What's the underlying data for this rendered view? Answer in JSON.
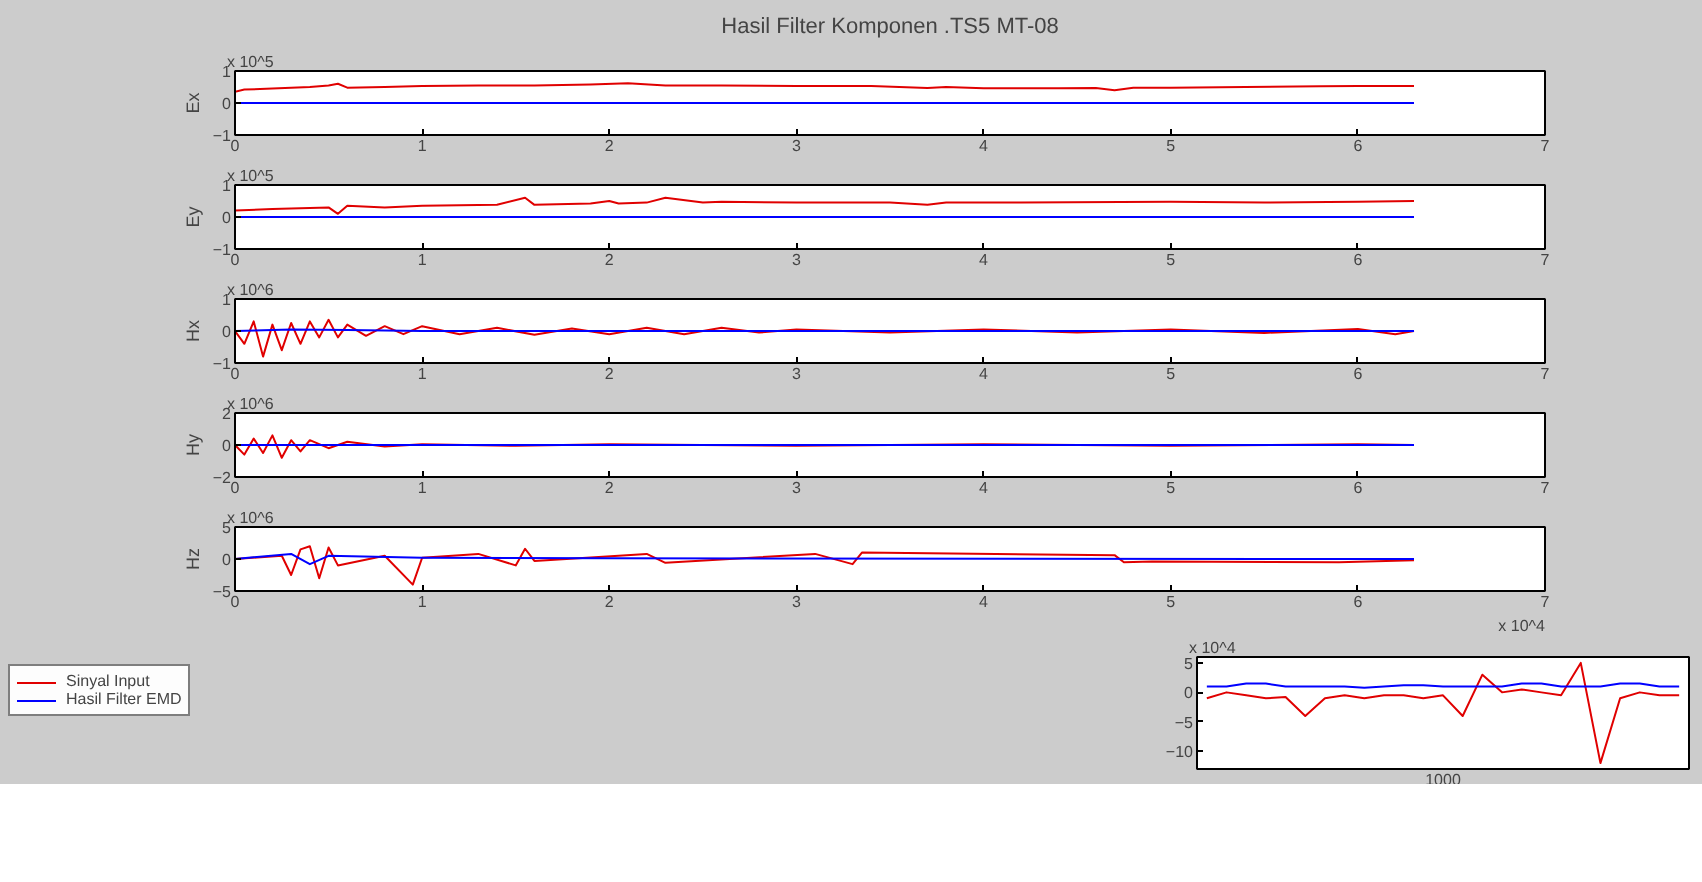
{
  "chart_data": [
    {
      "type": "line",
      "title": "Hasil Filter Komponen .TS5 MT-08",
      "ylabel": "Ex",
      "annotations": [
        "x 10^5"
      ],
      "xlim": [
        0,
        7
      ],
      "xticks": [
        0,
        1,
        2,
        3,
        4,
        5,
        6,
        7
      ],
      "ylim": [
        -1,
        1
      ],
      "yticks": [
        -1,
        0,
        1
      ],
      "grid": false,
      "legend": false,
      "series": [
        {
          "color": "#e00000",
          "x": [
            0,
            0.05,
            0.2,
            0.4,
            0.5,
            0.55,
            0.6,
            0.8,
            1.0,
            1.3,
            1.6,
            1.9,
            2.1,
            2.3,
            2.6,
            3.0,
            3.4,
            3.7,
            3.8,
            4.0,
            4.4,
            4.6,
            4.7,
            4.8,
            5.0,
            5.4,
            5.8,
            6.0,
            6.3
          ],
          "values": [
            0.35,
            0.42,
            0.45,
            0.5,
            0.55,
            0.6,
            0.48,
            0.5,
            0.53,
            0.55,
            0.55,
            0.58,
            0.62,
            0.55,
            0.55,
            0.53,
            0.53,
            0.47,
            0.5,
            0.46,
            0.46,
            0.47,
            0.4,
            0.48,
            0.48,
            0.5,
            0.52,
            0.53,
            0.53
          ]
        },
        {
          "color": "#0000ff",
          "x": [
            0,
            6.3
          ],
          "values": [
            0,
            0
          ]
        }
      ]
    },
    {
      "type": "line",
      "ylabel": "Ey",
      "annotations": [
        "x 10^5"
      ],
      "xlim": [
        0,
        7
      ],
      "xticks": [
        0,
        1,
        2,
        3,
        4,
        5,
        6,
        7
      ],
      "ylim": [
        -1,
        1
      ],
      "yticks": [
        -1,
        0,
        1
      ],
      "grid": false,
      "legend": false,
      "series": [
        {
          "color": "#e00000",
          "x": [
            0,
            0.2,
            0.4,
            0.5,
            0.55,
            0.6,
            0.8,
            1.0,
            1.4,
            1.55,
            1.6,
            1.9,
            2.0,
            2.05,
            2.2,
            2.3,
            2.5,
            2.6,
            3.0,
            3.5,
            3.7,
            3.8,
            4.2,
            5.0,
            5.5,
            6.0,
            6.3
          ],
          "values": [
            0.2,
            0.25,
            0.28,
            0.3,
            0.1,
            0.35,
            0.3,
            0.35,
            0.38,
            0.6,
            0.38,
            0.42,
            0.5,
            0.42,
            0.45,
            0.6,
            0.45,
            0.48,
            0.45,
            0.45,
            0.38,
            0.45,
            0.45,
            0.48,
            0.45,
            0.48,
            0.5
          ]
        },
        {
          "color": "#0000ff",
          "x": [
            0,
            6.3
          ],
          "values": [
            0,
            0
          ]
        }
      ]
    },
    {
      "type": "line",
      "ylabel": "Hx",
      "annotations": [
        "x 10^6"
      ],
      "xlim": [
        0,
        7
      ],
      "xticks": [
        0,
        1,
        2,
        3,
        4,
        5,
        6,
        7
      ],
      "ylim": [
        -1,
        1
      ],
      "yticks": [
        -1,
        0,
        1
      ],
      "grid": false,
      "legend": false,
      "series": [
        {
          "color": "#e00000",
          "x": [
            0,
            0.05,
            0.1,
            0.15,
            0.2,
            0.25,
            0.3,
            0.35,
            0.4,
            0.45,
            0.5,
            0.55,
            0.6,
            0.7,
            0.8,
            0.9,
            1.0,
            1.2,
            1.4,
            1.6,
            1.8,
            2.0,
            2.2,
            2.4,
            2.6,
            2.8,
            3.0,
            3.5,
            4.0,
            4.5,
            5.0,
            5.5,
            6.0,
            6.2,
            6.3
          ],
          "values": [
            0,
            -0.4,
            0.3,
            -0.8,
            0.2,
            -0.6,
            0.25,
            -0.4,
            0.3,
            -0.2,
            0.35,
            -0.2,
            0.2,
            -0.15,
            0.15,
            -0.1,
            0.15,
            -0.1,
            0.1,
            -0.12,
            0.08,
            -0.1,
            0.1,
            -0.1,
            0.1,
            -0.05,
            0.05,
            -0.05,
            0.05,
            -0.05,
            0.05,
            -0.06,
            0.06,
            -0.1,
            0
          ]
        },
        {
          "color": "#0000ff",
          "x": [
            0,
            0.3,
            0.6,
            1,
            6.3
          ],
          "values": [
            0,
            0.05,
            0.03,
            0,
            0
          ]
        }
      ]
    },
    {
      "type": "line",
      "ylabel": "Hy",
      "annotations": [
        "x 10^6"
      ],
      "xlim": [
        0,
        7
      ],
      "xticks": [
        0,
        1,
        2,
        3,
        4,
        5,
        6,
        7
      ],
      "ylim": [
        -2,
        2
      ],
      "yticks": [
        -2,
        0,
        2
      ],
      "grid": false,
      "legend": false,
      "series": [
        {
          "color": "#e00000",
          "x": [
            0,
            0.05,
            0.1,
            0.15,
            0.2,
            0.25,
            0.3,
            0.35,
            0.4,
            0.5,
            0.6,
            0.8,
            1,
            1.5,
            2,
            3,
            4,
            5,
            6,
            6.3
          ],
          "values": [
            0,
            -0.6,
            0.4,
            -0.5,
            0.6,
            -0.8,
            0.3,
            -0.4,
            0.3,
            -0.2,
            0.2,
            -0.1,
            0.05,
            -0.05,
            0.05,
            -0.05,
            0.05,
            -0.05,
            0.05,
            0
          ]
        },
        {
          "color": "#0000ff",
          "x": [
            0,
            6.3
          ],
          "values": [
            0,
            0
          ]
        }
      ]
    },
    {
      "type": "line",
      "ylabel": "Hz",
      "xlabel": "x 10^4",
      "annotations": [
        "x 10^6"
      ],
      "xlim": [
        0,
        7
      ],
      "xticks": [
        0,
        1,
        2,
        3,
        4,
        5,
        6,
        7
      ],
      "ylim": [
        -5,
        5
      ],
      "yticks": [
        -5,
        0,
        5
      ],
      "grid": false,
      "legend": false,
      "series": [
        {
          "color": "#e00000",
          "x": [
            0,
            0.25,
            0.3,
            0.35,
            0.4,
            0.45,
            0.5,
            0.55,
            0.8,
            0.95,
            1.0,
            1.3,
            1.5,
            1.55,
            1.6,
            2.2,
            2.3,
            3.1,
            3.3,
            3.35,
            4.7,
            4.75,
            4.9,
            5.9,
            6.3
          ],
          "values": [
            0,
            0.5,
            -2.5,
            1.5,
            2,
            -3,
            1.8,
            -1,
            0.5,
            -4,
            0.2,
            0.8,
            -1,
            1.6,
            -0.3,
            0.8,
            -0.6,
            0.8,
            -0.8,
            1,
            0.6,
            -0.5,
            -0.4,
            -0.5,
            -0.2
          ]
        },
        {
          "color": "#0000ff",
          "x": [
            0,
            0.3,
            0.4,
            0.5,
            1,
            2,
            6.3
          ],
          "values": [
            0,
            0.8,
            -0.8,
            0.5,
            0.2,
            0.1,
            0
          ]
        }
      ]
    },
    {
      "type": "line",
      "annotations": [
        "x 10^4",
        "1000"
      ],
      "categories": [
        null,
        null,
        null,
        null,
        null,
        null,
        null,
        null,
        null,
        null,
        null,
        null,
        null,
        null,
        null,
        null,
        null,
        null,
        null,
        null,
        null,
        null,
        null,
        null,
        null
      ],
      "ylim": [
        -13,
        6
      ],
      "yticks": [
        5,
        0,
        -5,
        -10
      ],
      "grid": false,
      "legend": "left",
      "series": [
        {
          "name": "Sinyal Input",
          "color": "#e00000",
          "values": [
            -1,
            0,
            -0.5,
            -1,
            -0.8,
            -4,
            -1,
            -0.5,
            -1,
            -0.5,
            -0.5,
            -1,
            -0.5,
            -4,
            3,
            0,
            0.5,
            0,
            -0.5,
            5,
            -12,
            -1,
            0,
            -0.5,
            -0.5
          ]
        },
        {
          "name": "Hasil Filter EMD",
          "color": "#0000ff",
          "values": [
            1,
            1,
            1.5,
            1.5,
            1,
            1,
            1,
            1,
            0.8,
            1,
            1.2,
            1.2,
            1,
            1,
            1,
            1,
            1.5,
            1.5,
            1,
            1,
            1,
            1.5,
            1.5,
            1,
            1
          ]
        }
      ]
    }
  ]
}
